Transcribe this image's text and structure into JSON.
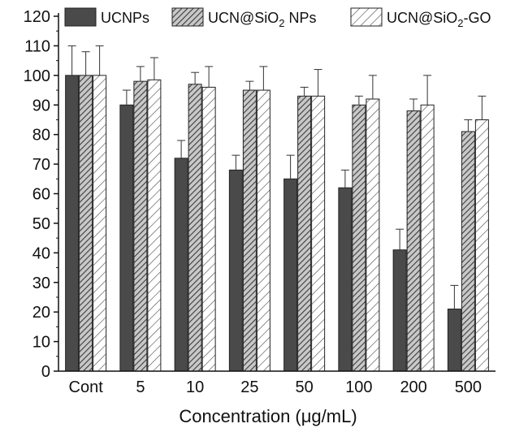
{
  "chart_data": {
    "type": "bar",
    "title": "",
    "xlabel": "Concentration (μg/mL)",
    "ylabel": "",
    "ylim": [
      0,
      120
    ],
    "yticks": [
      0,
      10,
      20,
      30,
      40,
      50,
      60,
      70,
      80,
      90,
      100,
      110,
      120
    ],
    "categories": [
      "Cont",
      "5",
      "10",
      "25",
      "50",
      "100",
      "200",
      "500"
    ],
    "series": [
      {
        "name": "UCNPs",
        "pattern": "solid-dark",
        "color": "#4a4a4a",
        "values": [
          100,
          90,
          72,
          68,
          65,
          62,
          41,
          21
        ],
        "errors": [
          10,
          5,
          6,
          5,
          8,
          6,
          7,
          8
        ]
      },
      {
        "name": "UCN@SiO",
        "name_sub": "2",
        "name_suffix": " NPs",
        "pattern": "dense-hatch",
        "color": "#6e6e6e",
        "values": [
          100,
          98,
          97,
          95,
          93,
          90,
          88,
          81
        ],
        "errors": [
          8,
          5,
          4,
          3,
          3,
          3,
          4,
          4
        ]
      },
      {
        "name": "UCN@SiO",
        "name_sub": "2",
        "name_suffix": "-GO",
        "pattern": "sparse-hatch",
        "color": "#555555",
        "values": [
          100,
          98.5,
          96,
          95,
          93,
          92,
          90,
          85
        ],
        "errors": [
          10,
          7.5,
          7,
          8,
          9,
          8,
          10,
          8
        ]
      }
    ],
    "legend_position": "top",
    "grid": false
  }
}
